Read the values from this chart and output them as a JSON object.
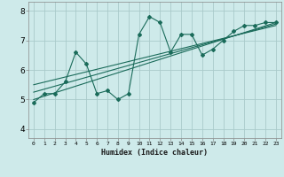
{
  "xlabel": "Humidex (Indice chaleur)",
  "ylabel": "",
  "bg_color": "#ceeaea",
  "grid_color": "#aacaca",
  "line_color": "#1a6b5a",
  "x_ticks": [
    0,
    1,
    2,
    3,
    4,
    5,
    6,
    7,
    8,
    9,
    10,
    11,
    12,
    13,
    14,
    15,
    16,
    17,
    18,
    19,
    20,
    21,
    22,
    23
  ],
  "y_ticks": [
    4,
    5,
    6,
    7,
    8
  ],
  "ylim": [
    3.7,
    8.3
  ],
  "xlim": [
    -0.5,
    23.5
  ],
  "series1_x": [
    0,
    1,
    2,
    3,
    4,
    5,
    6,
    7,
    8,
    9,
    10,
    11,
    12,
    13,
    14,
    15,
    16,
    17,
    18,
    19,
    20,
    21,
    22,
    23
  ],
  "series1_y": [
    4.9,
    5.2,
    5.2,
    5.6,
    6.6,
    6.2,
    5.2,
    5.3,
    5.0,
    5.2,
    7.2,
    7.8,
    7.6,
    6.6,
    7.2,
    7.2,
    6.5,
    6.7,
    7.0,
    7.3,
    7.5,
    7.5,
    7.6,
    7.6
  ],
  "series2_x": [
    0,
    23
  ],
  "series2_y": [
    5.0,
    7.6
  ],
  "series3_x": [
    0,
    23
  ],
  "series3_y": [
    5.25,
    7.55
  ],
  "series4_x": [
    0,
    23
  ],
  "series4_y": [
    5.5,
    7.5
  ]
}
